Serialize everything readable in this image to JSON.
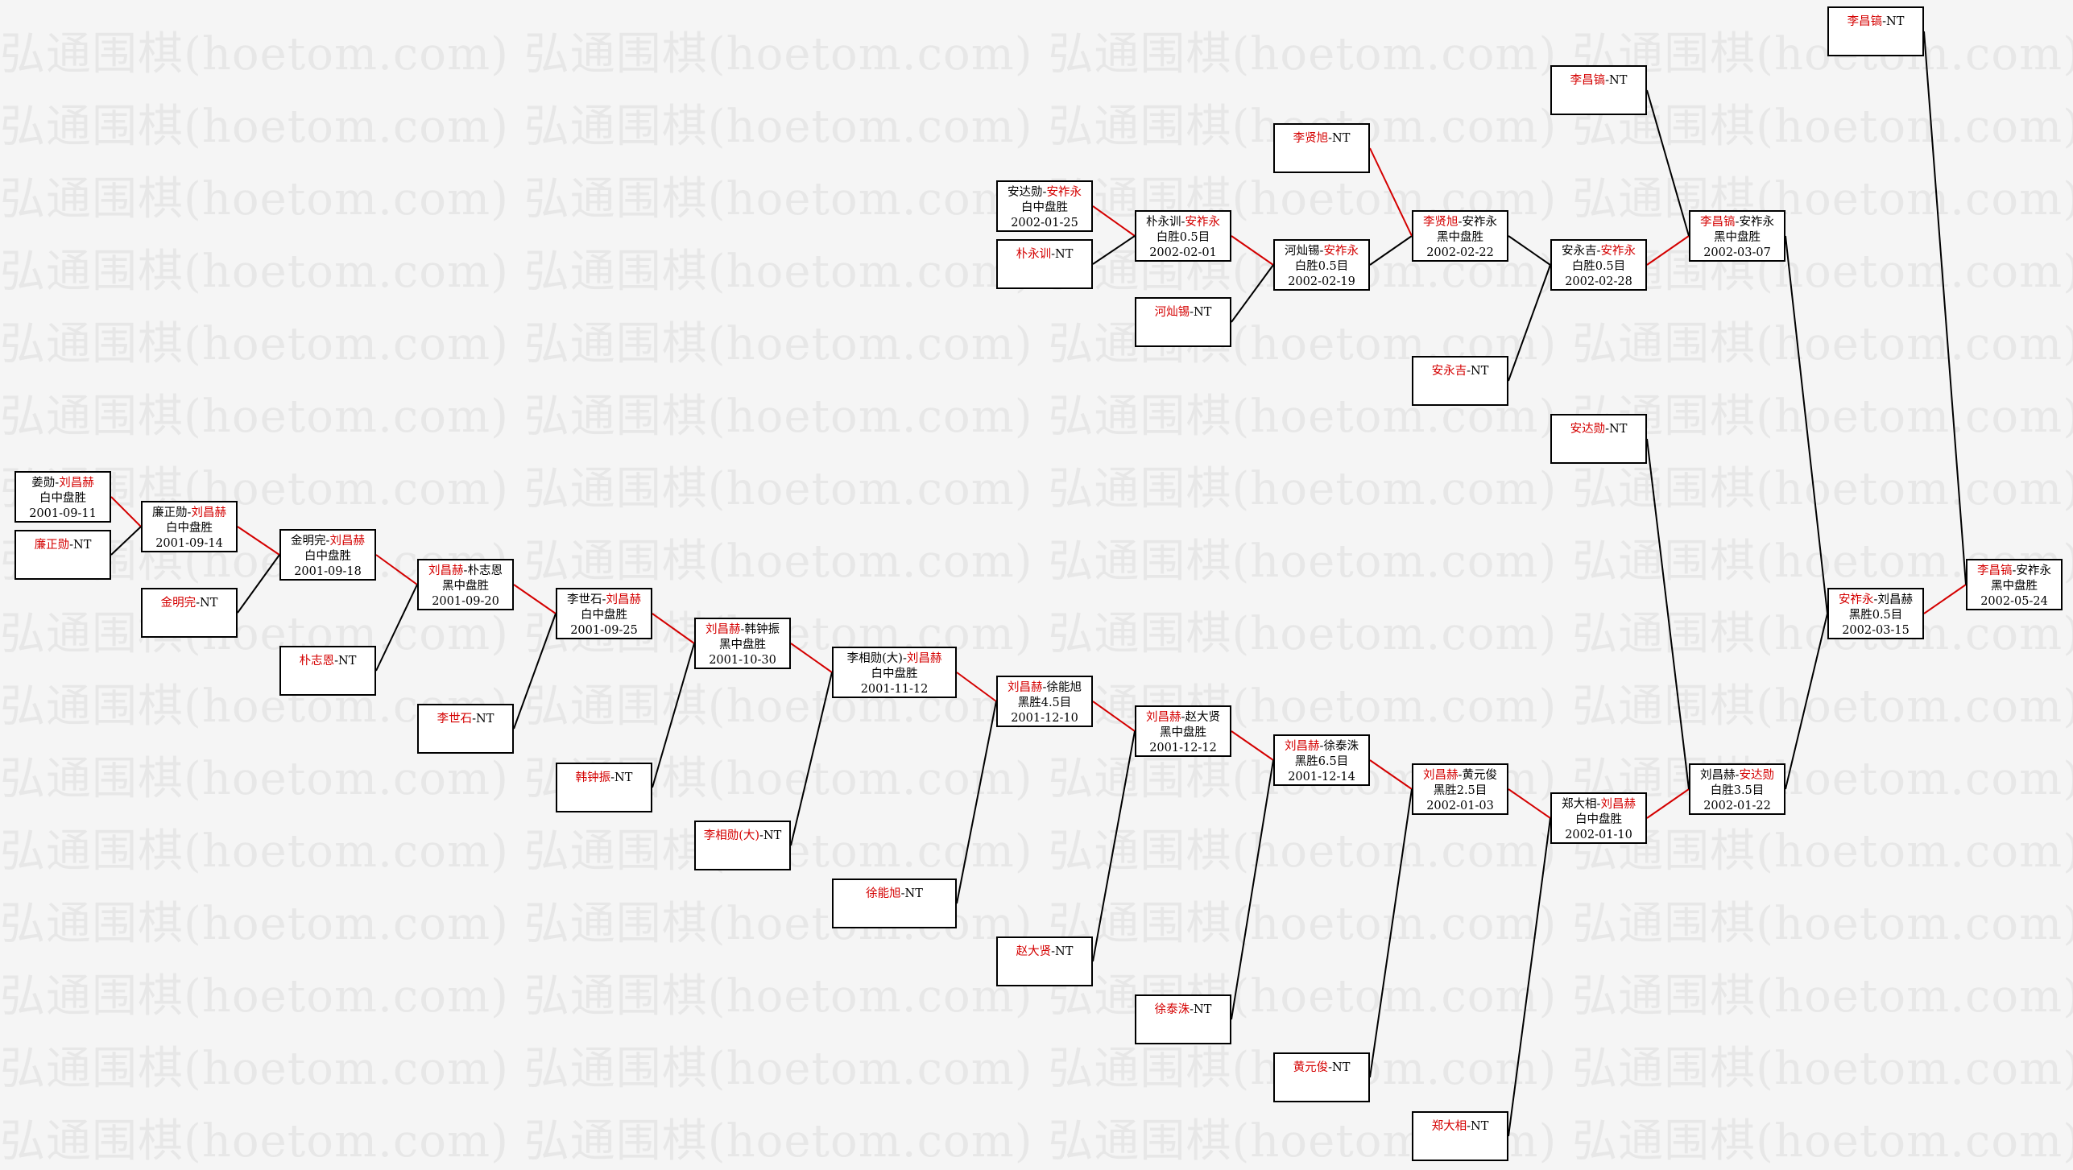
{
  "watermark_text": "弘通围棋(hoetom.com)",
  "colors": {
    "winner_link": "#d40000",
    "loser_link": "#000000",
    "highlight": "#d40000"
  },
  "matches": [
    {
      "id": "m1",
      "p1": "姜勋",
      "p2": "刘昌赫",
      "winner": 2,
      "result": "白中盘胜",
      "date": "2001-09-11"
    },
    {
      "id": "s_liangzx",
      "p1": "廉正勋",
      "p2": "NT",
      "winner": 1,
      "result": "",
      "date": ""
    },
    {
      "id": "m2",
      "p1": "廉正勋",
      "p2": "刘昌赫",
      "winner": 2,
      "result": "白中盘胜",
      "date": "2001-09-14"
    },
    {
      "id": "s_jinmw",
      "p1": "金明完",
      "p2": "NT",
      "winner": 1,
      "result": "",
      "date": ""
    },
    {
      "id": "m3",
      "p1": "金明完",
      "p2": "刘昌赫",
      "winner": 2,
      "result": "白中盘胜",
      "date": "2001-09-18"
    },
    {
      "id": "s_piaozhien",
      "p1": "朴志恩",
      "p2": "NT",
      "winner": 1,
      "result": "",
      "date": ""
    },
    {
      "id": "m4",
      "p1": "刘昌赫",
      "p2": "朴志恩",
      "winner": 1,
      "result": "黑中盘胜",
      "date": "2001-09-20"
    },
    {
      "id": "s_lishishi",
      "p1": "李世石",
      "p2": "NT",
      "winner": 1,
      "result": "",
      "date": ""
    },
    {
      "id": "m5",
      "p1": "李世石",
      "p2": "刘昌赫",
      "winner": 2,
      "result": "白中盘胜",
      "date": "2001-09-25"
    },
    {
      "id": "s_hanzz",
      "p1": "韩钟振",
      "p2": "NT",
      "winner": 1,
      "result": "",
      "date": ""
    },
    {
      "id": "m6",
      "p1": "刘昌赫",
      "p2": "韩钟振",
      "winner": 1,
      "result": "黑中盘胜",
      "date": "2001-10-30"
    },
    {
      "id": "s_lixx",
      "p1": "李相勋(大)",
      "p2": "NT",
      "winner": 1,
      "result": "",
      "date": ""
    },
    {
      "id": "m7",
      "p1": "李相勋(大)",
      "p2": "刘昌赫",
      "winner": 2,
      "result": "白中盘胜",
      "date": "2001-11-12"
    },
    {
      "id": "s_xuneng",
      "p1": "徐能旭",
      "p2": "NT",
      "winner": 1,
      "result": "",
      "date": ""
    },
    {
      "id": "m8",
      "p1": "刘昌赫",
      "p2": "徐能旭",
      "winner": 1,
      "result": "黑胜4.5目",
      "date": "2001-12-10"
    },
    {
      "id": "s_zhaodx",
      "p1": "赵大贤",
      "p2": "NT",
      "winner": 1,
      "result": "",
      "date": ""
    },
    {
      "id": "m9",
      "p1": "刘昌赫",
      "p2": "赵大贤",
      "winner": 1,
      "result": "黑中盘胜",
      "date": "2001-12-12"
    },
    {
      "id": "s_xutz",
      "p1": "徐泰洙",
      "p2": "NT",
      "winner": 1,
      "result": "",
      "date": ""
    },
    {
      "id": "m10",
      "p1": "刘昌赫",
      "p2": "徐泰洙",
      "winner": 1,
      "result": "黑胜6.5目",
      "date": "2001-12-14"
    },
    {
      "id": "s_huangyj",
      "p1": "黄元俊",
      "p2": "NT",
      "winner": 1,
      "result": "",
      "date": ""
    },
    {
      "id": "m11",
      "p1": "刘昌赫",
      "p2": "黄元俊",
      "winner": 1,
      "result": "黑胜2.5目",
      "date": "2002-01-03"
    },
    {
      "id": "s_zhengdx",
      "p1": "郑大相",
      "p2": "NT",
      "winner": 1,
      "result": "",
      "date": ""
    },
    {
      "id": "m12",
      "p1": "郑大相",
      "p2": "刘昌赫",
      "winner": 2,
      "result": "白中盘胜",
      "date": "2002-01-10"
    },
    {
      "id": "s_andaxun",
      "p1": "安达勋",
      "p2": "NT",
      "winner": 1,
      "result": "",
      "date": ""
    },
    {
      "id": "m13",
      "p1": "刘昌赫",
      "p2": "安达勋",
      "winner": 2,
      "result": "白胜3.5目",
      "date": "2002-01-22"
    },
    {
      "id": "u1",
      "p1": "安达勋",
      "p2": "安祚永",
      "winner": 2,
      "result": "白中盘胜",
      "date": "2002-01-25"
    },
    {
      "id": "s_piaoyx",
      "p1": "朴永训",
      "p2": "NT",
      "winner": 1,
      "result": "",
      "date": ""
    },
    {
      "id": "u2",
      "p1": "朴永训",
      "p2": "安祚永",
      "winner": 2,
      "result": "白胜0.5目",
      "date": "2002-02-01"
    },
    {
      "id": "s_heshanx",
      "p1": "河灿锡",
      "p2": "NT",
      "winner": 1,
      "result": "",
      "date": ""
    },
    {
      "id": "u3",
      "p1": "河灿锡",
      "p2": "安祚永",
      "winner": 2,
      "result": "白胜0.5目",
      "date": "2002-02-19"
    },
    {
      "id": "s_lixianxu",
      "p1": "李贤旭",
      "p2": "NT",
      "winner": 1,
      "result": "",
      "date": ""
    },
    {
      "id": "u4",
      "p1": "李贤旭",
      "p2": "安祚永",
      "winner": 1,
      "result": "黑中盘胜",
      "date": "2002-02-22"
    },
    {
      "id": "s_anyongji",
      "p1": "安永吉",
      "p2": "NT",
      "winner": 1,
      "result": "",
      "date": ""
    },
    {
      "id": "u5",
      "p1": "安永吉",
      "p2": "安祚永",
      "winner": 2,
      "result": "白胜0.5目",
      "date": "2002-02-28"
    },
    {
      "id": "s_lichanghao1",
      "p1": "李昌镐",
      "p2": "NT",
      "winner": 1,
      "result": "",
      "date": ""
    },
    {
      "id": "u6",
      "p1": "李昌镐",
      "p2": "安祚永",
      "winner": 1,
      "result": "黑中盘胜",
      "date": "2002-03-07"
    },
    {
      "id": "sf",
      "p1": "安祚永",
      "p2": "刘昌赫",
      "winner": 1,
      "result": "黑胜0.5目",
      "date": "2002-03-15"
    },
    {
      "id": "s_lichanghao2",
      "p1": "李昌镐",
      "p2": "NT",
      "winner": 1,
      "result": "",
      "date": ""
    },
    {
      "id": "final",
      "p1": "李昌镐",
      "p2": "安祚永",
      "winner": 1,
      "result": "黑中盘胜",
      "date": "2002-05-24"
    }
  ]
}
